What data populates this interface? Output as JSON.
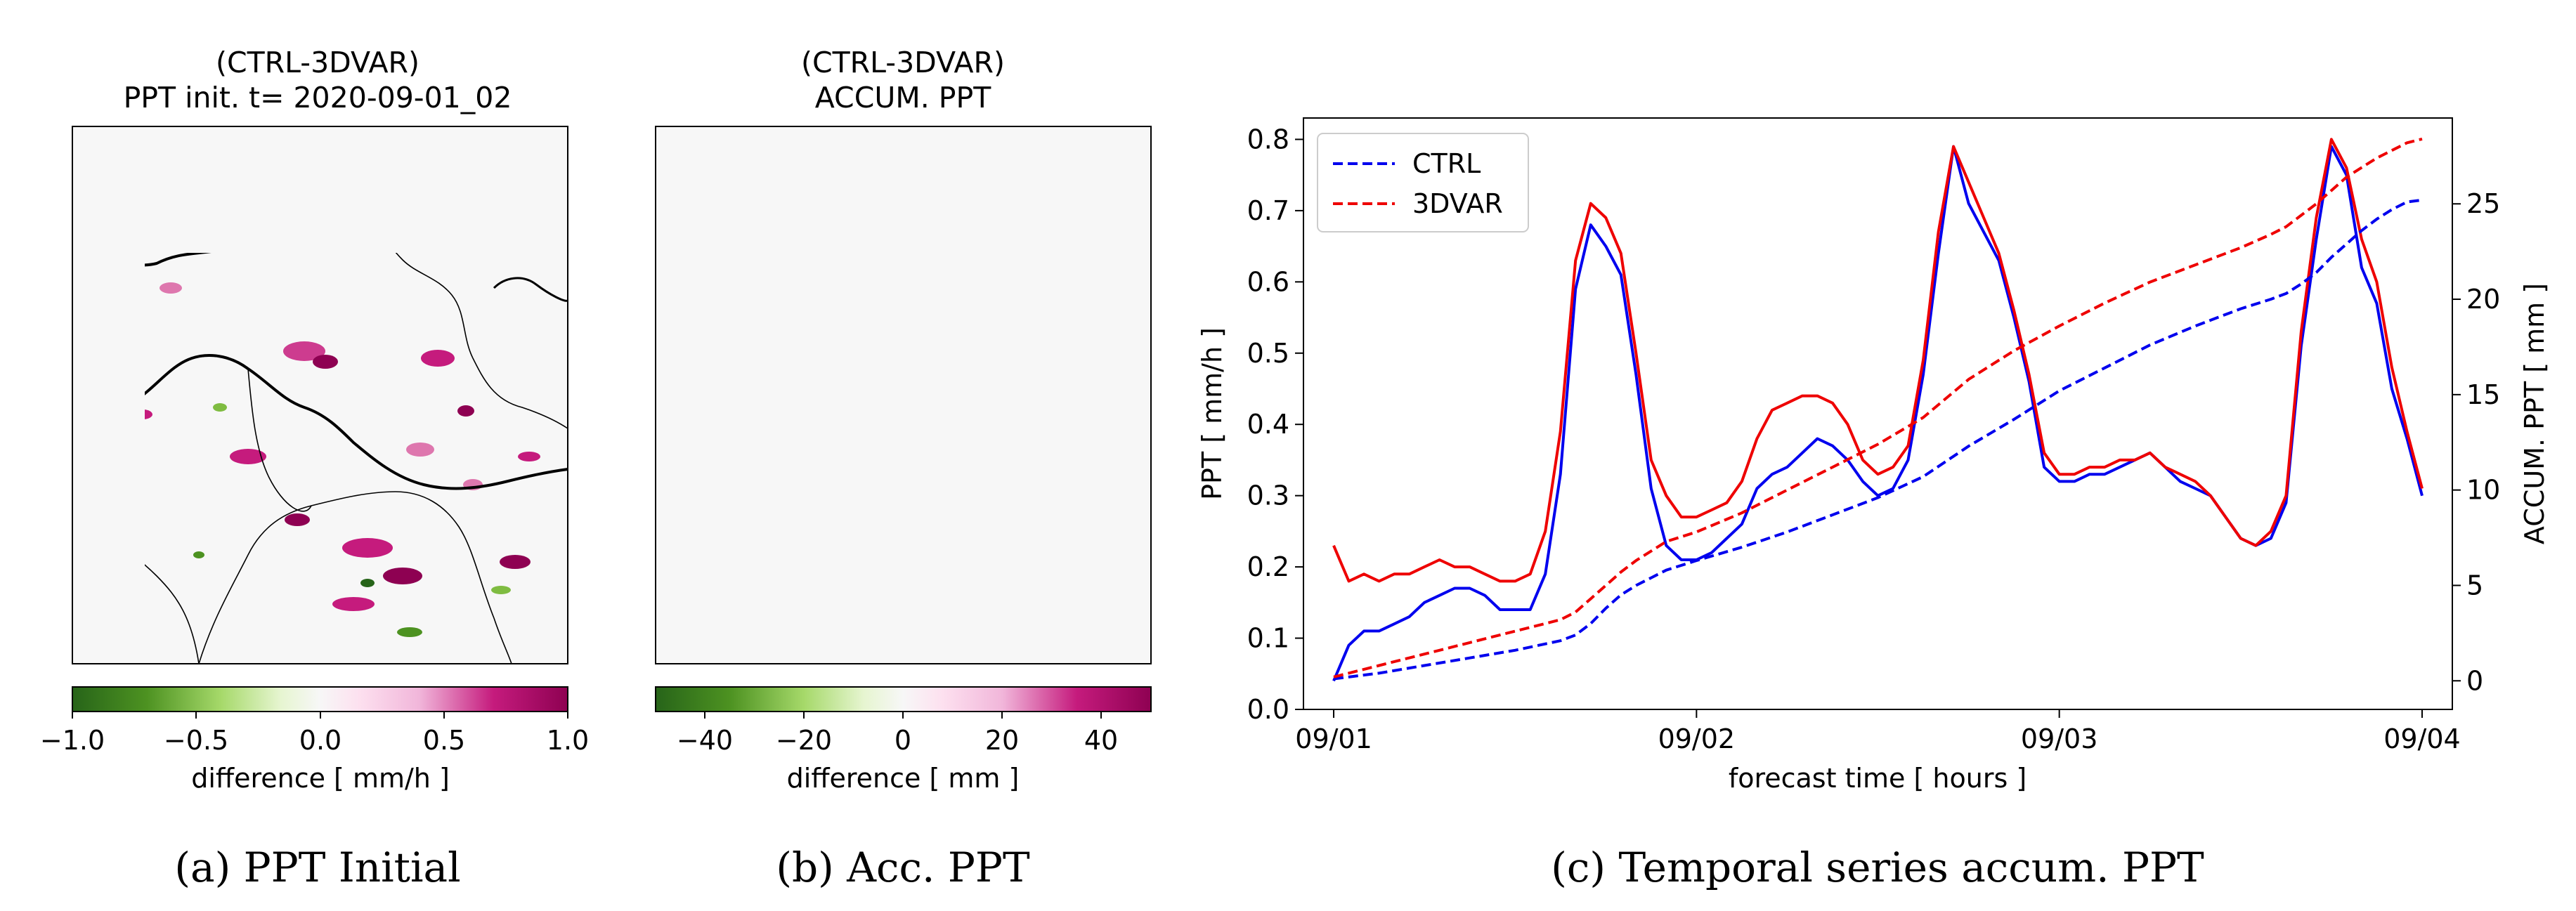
{
  "colors": {
    "ctrl": "#0000ee",
    "var3d": "#ee0000",
    "cmap_neg": "#276419",
    "cmap_mid": "#f7f7f7",
    "cmap_pos": "#8e0152",
    "map_bg": "#f7f7f7"
  },
  "panels": [
    {
      "caption": "(a)  PPT Initial",
      "title_line1": "(CTRL-3DVAR)",
      "title_line2": "PPT init. t= 2020-09-01_02",
      "colorbar": {
        "range": [
          -1.0,
          1.0
        ],
        "ticks": [
          "−1.0",
          "−0.5",
          "0.0",
          "0.5",
          "1.0"
        ],
        "label": "difference [ mm/h ]"
      }
    },
    {
      "caption": "(b)  Acc. PPT",
      "title_line1": "(CTRL-3DVAR)",
      "title_line2": "ACCUM. PPT",
      "colorbar": {
        "range": [
          -50,
          50
        ],
        "ticks": [
          "−40",
          "−20",
          "0",
          "20",
          "40"
        ],
        "tick_values": [
          -40,
          -20,
          0,
          20,
          40
        ],
        "label": "difference [ mm ]"
      }
    },
    {
      "caption": "(c)  Temporal series accum. PPT"
    }
  ],
  "chart_data": {
    "type": "line",
    "xlabel": "forecast time [ hours ]",
    "ylabel": "PPT [ mm/h ]",
    "y2label": "ACCUM. PPT [ mm ]",
    "x_ticks": [
      "09/01",
      "09/02",
      "09/03",
      "09/04"
    ],
    "x_tick_hours": [
      0,
      24,
      48,
      72
    ],
    "xlim": [
      -2,
      74
    ],
    "ylim": [
      0.0,
      0.83
    ],
    "y_ticks": [
      "0.0",
      "0.1",
      "0.2",
      "0.3",
      "0.4",
      "0.5",
      "0.6",
      "0.7",
      "0.8"
    ],
    "y2lim": [
      -1.5,
      29.5
    ],
    "y2_ticks": [
      "0",
      "5",
      "10",
      "15",
      "20",
      "25"
    ],
    "legend": {
      "position": "top-left",
      "entries": [
        "CTRL",
        "3DVAR"
      ]
    },
    "series": [
      {
        "name": "CTRL PPT",
        "axis": "left",
        "style": "solid",
        "color_key": "ctrl",
        "x": [
          0,
          1,
          2,
          3,
          4,
          5,
          6,
          7,
          8,
          9,
          10,
          11,
          12,
          13,
          14,
          15,
          16,
          17,
          18,
          19,
          20,
          21,
          22,
          23,
          24,
          25,
          26,
          27,
          28,
          29,
          30,
          31,
          32,
          33,
          34,
          35,
          36,
          37,
          38,
          39,
          40,
          41,
          42,
          43,
          44,
          45,
          46,
          47,
          48,
          49,
          50,
          51,
          52,
          53,
          54,
          55,
          56,
          57,
          58,
          59,
          60,
          61,
          62,
          63,
          64,
          65,
          66,
          67,
          68,
          69,
          70,
          71,
          72
        ],
        "y": [
          0.04,
          0.09,
          0.11,
          0.11,
          0.12,
          0.13,
          0.15,
          0.16,
          0.17,
          0.17,
          0.16,
          0.14,
          0.14,
          0.14,
          0.19,
          0.33,
          0.59,
          0.68,
          0.65,
          0.61,
          0.47,
          0.31,
          0.23,
          0.21,
          0.21,
          0.22,
          0.24,
          0.26,
          0.31,
          0.33,
          0.34,
          0.36,
          0.38,
          0.37,
          0.35,
          0.32,
          0.3,
          0.31,
          0.35,
          0.47,
          0.64,
          0.79,
          0.71,
          0.67,
          0.63,
          0.55,
          0.46,
          0.34,
          0.32,
          0.32,
          0.33,
          0.33,
          0.34,
          0.35,
          0.36,
          0.34,
          0.32,
          0.31,
          0.3,
          0.27,
          0.24,
          0.23,
          0.24,
          0.29,
          0.51,
          0.66,
          0.79,
          0.75,
          0.62,
          0.57,
          0.45,
          0.38,
          0.3
        ]
      },
      {
        "name": "3DVAR PPT",
        "axis": "left",
        "style": "solid",
        "color_key": "var3d",
        "x": [
          0,
          1,
          2,
          3,
          4,
          5,
          6,
          7,
          8,
          9,
          10,
          11,
          12,
          13,
          14,
          15,
          16,
          17,
          18,
          19,
          20,
          21,
          22,
          23,
          24,
          25,
          26,
          27,
          28,
          29,
          30,
          31,
          32,
          33,
          34,
          35,
          36,
          37,
          38,
          39,
          40,
          41,
          42,
          43,
          44,
          45,
          46,
          47,
          48,
          49,
          50,
          51,
          52,
          53,
          54,
          55,
          56,
          57,
          58,
          59,
          60,
          61,
          62,
          63,
          64,
          65,
          66,
          67,
          68,
          69,
          70,
          71,
          72
        ],
        "y": [
          0.23,
          0.18,
          0.19,
          0.18,
          0.19,
          0.19,
          0.2,
          0.21,
          0.2,
          0.2,
          0.19,
          0.18,
          0.18,
          0.19,
          0.25,
          0.39,
          0.63,
          0.71,
          0.69,
          0.64,
          0.5,
          0.35,
          0.3,
          0.27,
          0.27,
          0.28,
          0.29,
          0.32,
          0.38,
          0.42,
          0.43,
          0.44,
          0.44,
          0.43,
          0.4,
          0.35,
          0.33,
          0.34,
          0.37,
          0.49,
          0.67,
          0.79,
          0.74,
          0.69,
          0.64,
          0.56,
          0.47,
          0.36,
          0.33,
          0.33,
          0.34,
          0.34,
          0.35,
          0.35,
          0.36,
          0.34,
          0.33,
          0.32,
          0.3,
          0.27,
          0.24,
          0.23,
          0.25,
          0.3,
          0.53,
          0.69,
          0.8,
          0.76,
          0.66,
          0.6,
          0.48,
          0.39,
          0.31
        ]
      },
      {
        "name": "CTRL ACCUM",
        "axis": "right",
        "style": "dashed",
        "color_key": "ctrl",
        "x": [
          0,
          3,
          6,
          9,
          12,
          15,
          16,
          17,
          18,
          19,
          20,
          21,
          22,
          24,
          27,
          30,
          33,
          36,
          39,
          42,
          45,
          48,
          51,
          54,
          57,
          60,
          62,
          63,
          64,
          65,
          66,
          67,
          68,
          69,
          70,
          71,
          72
        ],
        "y": [
          0.1,
          0.4,
          0.8,
          1.2,
          1.6,
          2.1,
          2.4,
          3.0,
          3.8,
          4.5,
          5.0,
          5.4,
          5.8,
          6.3,
          7.0,
          7.8,
          8.7,
          9.6,
          10.7,
          12.3,
          13.7,
          15.2,
          16.4,
          17.6,
          18.6,
          19.5,
          20.0,
          20.3,
          20.8,
          21.4,
          22.2,
          22.9,
          23.6,
          24.2,
          24.7,
          25.1,
          25.2
        ]
      },
      {
        "name": "3DVAR ACCUM",
        "axis": "right",
        "style": "dashed",
        "color_key": "var3d",
        "x": [
          0,
          3,
          6,
          9,
          12,
          15,
          16,
          17,
          18,
          19,
          20,
          21,
          22,
          24,
          27,
          30,
          33,
          36,
          39,
          42,
          45,
          48,
          51,
          54,
          57,
          60,
          62,
          63,
          64,
          65,
          66,
          67,
          68,
          69,
          70,
          71,
          72
        ],
        "y": [
          0.2,
          0.8,
          1.4,
          2.0,
          2.6,
          3.2,
          3.6,
          4.3,
          5.0,
          5.7,
          6.3,
          6.8,
          7.3,
          7.8,
          8.8,
          10.0,
          11.2,
          12.4,
          13.8,
          15.8,
          17.3,
          18.6,
          19.8,
          20.9,
          21.8,
          22.7,
          23.4,
          23.8,
          24.4,
          25.0,
          25.7,
          26.4,
          26.9,
          27.4,
          27.8,
          28.2,
          28.4
        ]
      }
    ]
  }
}
